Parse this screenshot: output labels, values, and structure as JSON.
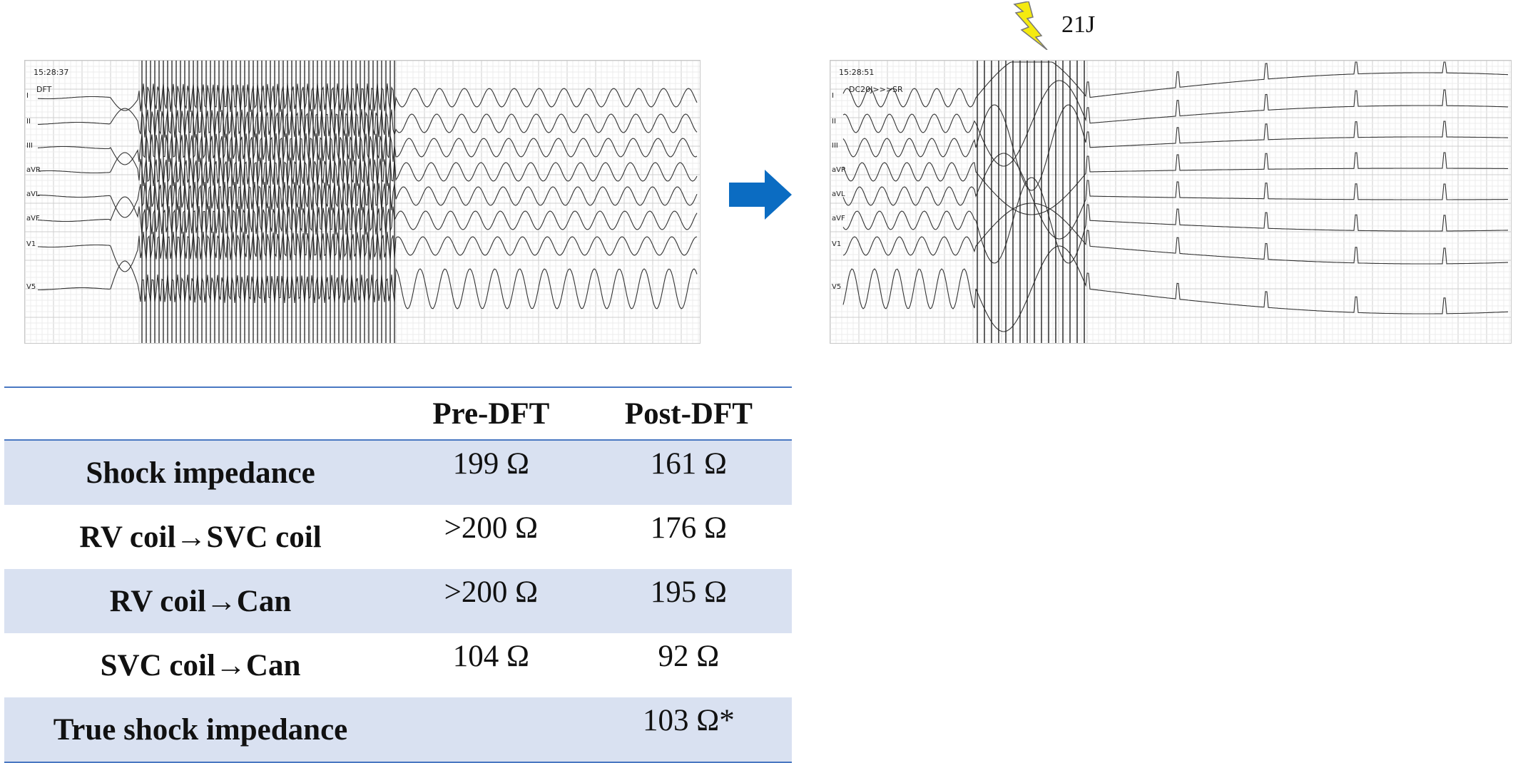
{
  "ecg_left": {
    "time": "15:28:37",
    "label": "DFT",
    "leads": [
      "I",
      "II",
      "III",
      "aVR",
      "aVL",
      "aVF",
      "V1",
      "V5"
    ]
  },
  "ecg_right": {
    "time": "15:28:51",
    "label": "DC20J>>>SR",
    "leads": [
      "I",
      "II",
      "III",
      "aVR",
      "aVL",
      "aVF",
      "V1",
      "V5"
    ]
  },
  "shock": {
    "energy": "21J",
    "icon": "lightning-bolt-icon"
  },
  "transition": {
    "icon": "right-arrow-icon",
    "color": "#0b6cc2"
  },
  "table": {
    "headers": [
      "",
      "Pre-DFT",
      "Post-DFT"
    ],
    "rows": [
      {
        "label": "Shock impedance",
        "pre": "199 Ω",
        "post": "161 Ω"
      },
      {
        "label": "RV coil→SVC coil",
        "pre": ">200 Ω",
        "post": "176 Ω"
      },
      {
        "label": "RV coil→Can",
        "pre": ">200 Ω",
        "post": "195 Ω"
      },
      {
        "label": "SVC coil→Can",
        "pre": "104 Ω",
        "post": "92 Ω"
      },
      {
        "label": "True shock impedance",
        "pre": "",
        "post": "103 Ω*"
      }
    ],
    "row_fill": "#d9e1f1",
    "rule_color": "#4a78c2"
  }
}
